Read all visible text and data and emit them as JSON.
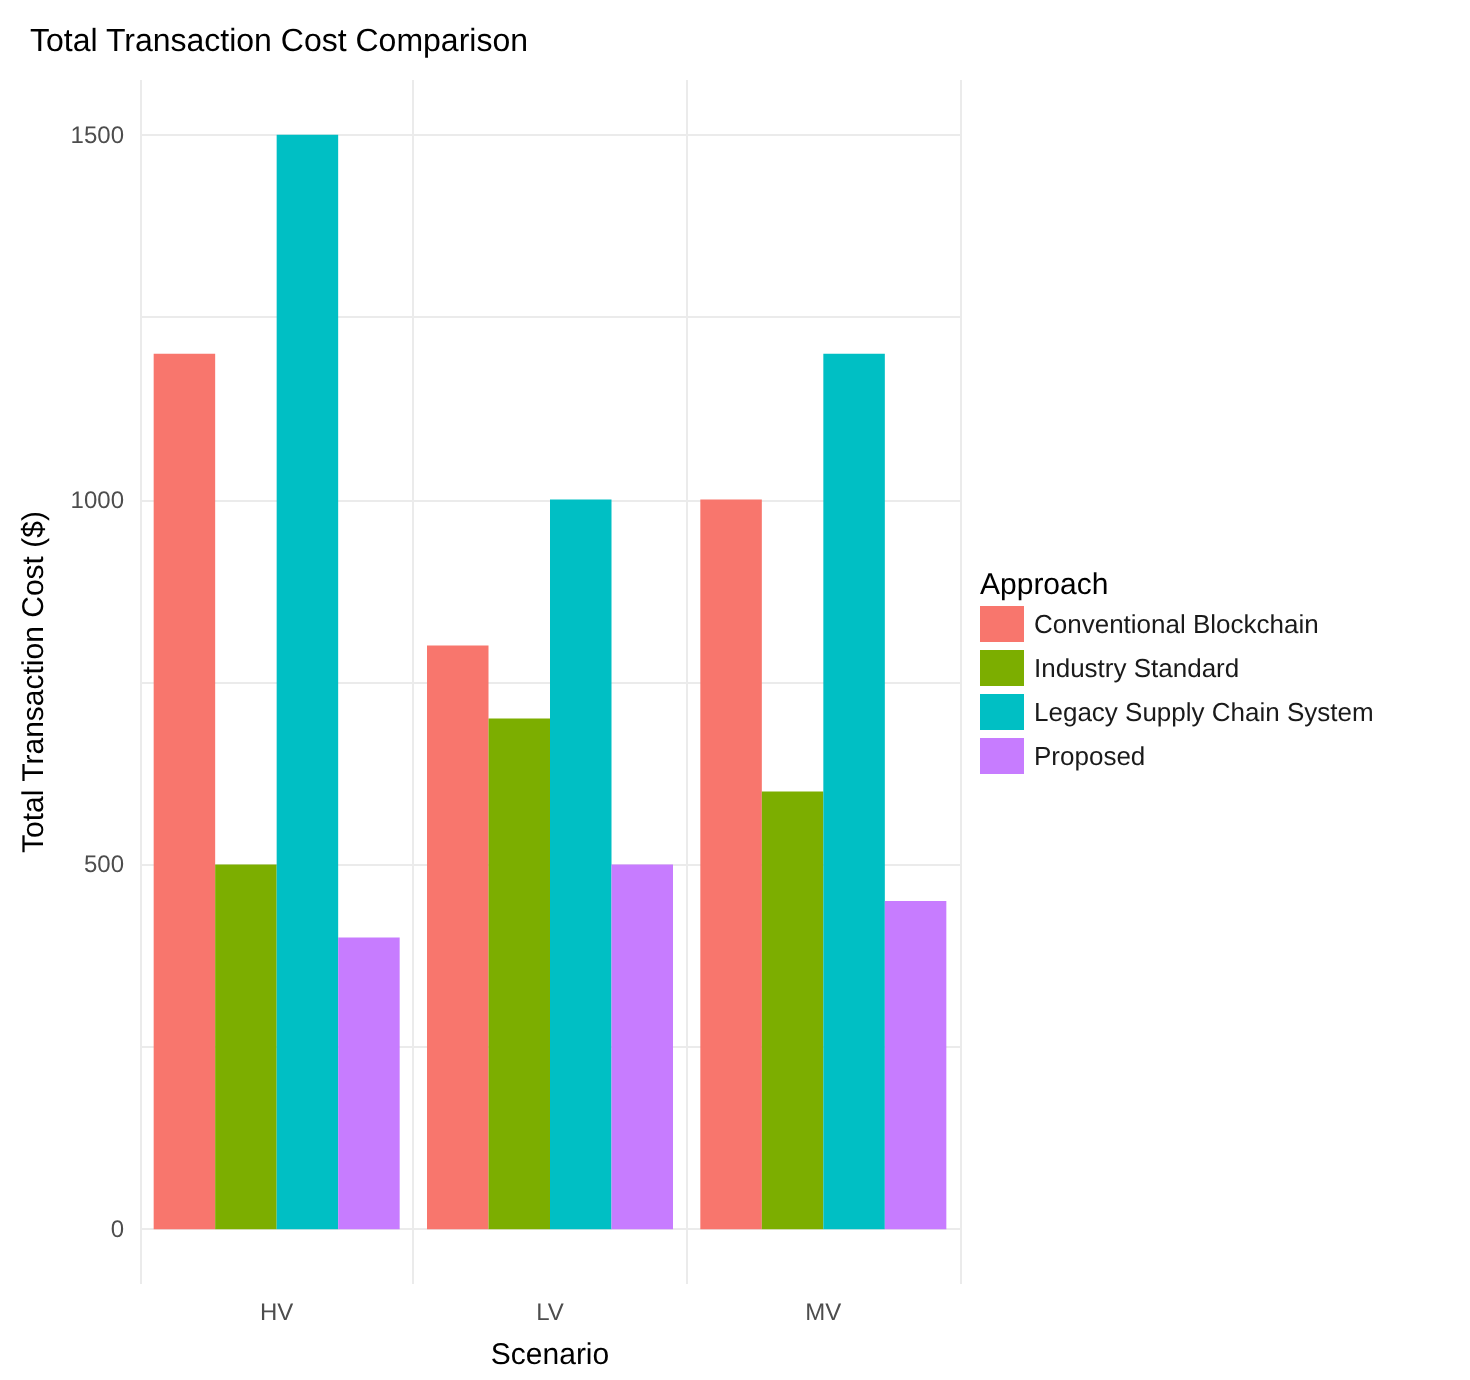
{
  "chart_data": {
    "type": "bar",
    "title": "Total Transaction Cost Comparison",
    "xlabel": "Scenario",
    "ylabel": "Total Transaction Cost ($)",
    "legend_title": "Approach",
    "categories": [
      "HV",
      "LV",
      "MV"
    ],
    "series": [
      {
        "name": "Conventional Blockchain",
        "color": "#f8766d",
        "values": [
          1200,
          800,
          1000
        ]
      },
      {
        "name": "Industry Standard",
        "color": "#7cae00",
        "values": [
          500,
          700,
          600
        ]
      },
      {
        "name": "Legacy Supply Chain System",
        "color": "#00bfc4",
        "values": [
          1500,
          1000,
          1200
        ]
      },
      {
        "name": "Proposed",
        "color": "#c77cff",
        "values": [
          400,
          500,
          450
        ]
      }
    ],
    "ylim": [
      -75,
      1575
    ],
    "yticks": [
      0,
      {
        "value": 250,
        "label": null
      },
      500,
      {
        "value": 750,
        "label": null
      },
      1000,
      {
        "value": 1250,
        "label": null
      },
      1500
    ],
    "grid": true,
    "legend": "right"
  }
}
